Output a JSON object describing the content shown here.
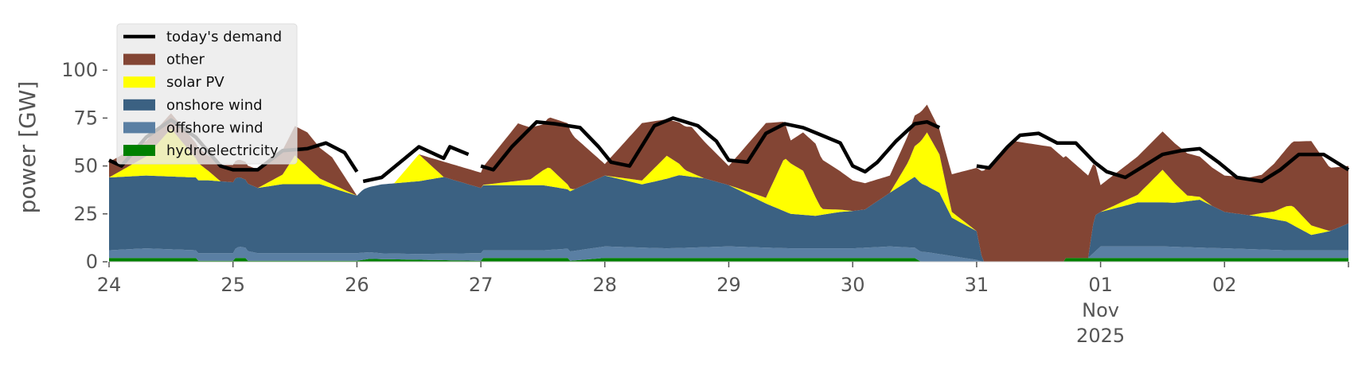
{
  "chart_data": {
    "type": "area",
    "ylabel": "power [GW]",
    "ylim": [
      0,
      120
    ],
    "y_ticks": [
      0,
      25,
      50,
      75,
      100
    ],
    "xlim": [
      0,
      10
    ],
    "x_ticks": [
      {
        "x": 0,
        "lines": [
          "24"
        ]
      },
      {
        "x": 1,
        "lines": [
          "25"
        ]
      },
      {
        "x": 2,
        "lines": [
          "26"
        ]
      },
      {
        "x": 3,
        "lines": [
          "27"
        ]
      },
      {
        "x": 4,
        "lines": [
          "28"
        ]
      },
      {
        "x": 5,
        "lines": [
          "29"
        ]
      },
      {
        "x": 6,
        "lines": [
          "30"
        ]
      },
      {
        "x": 7,
        "lines": [
          "31"
        ]
      },
      {
        "x": 8,
        "lines": [
          "01",
          "Nov",
          "2025"
        ]
      },
      {
        "x": 9,
        "lines": [
          "02"
        ]
      }
    ],
    "legend_position": "top-left",
    "legend": [
      {
        "label": "today's demand",
        "kind": "line",
        "color": "#000000"
      },
      {
        "label": "other",
        "kind": "patch",
        "color": "#834534"
      },
      {
        "label": "solar PV",
        "kind": "patch",
        "color": "#ffff00"
      },
      {
        "label": "onshore wind",
        "kind": "patch",
        "color": "#3b6182"
      },
      {
        "label": "offshore wind",
        "kind": "patch",
        "color": "#5a7fa3"
      },
      {
        "label": "hydroelectricity",
        "kind": "patch",
        "color": "#008000"
      }
    ],
    "series": [
      {
        "name": "hydroelectricity",
        "color": "#008000",
        "points": [
          [
            0,
            2
          ],
          [
            0.7,
            2
          ],
          [
            0.72,
            0.5
          ],
          [
            1,
            0.5
          ],
          [
            1.02,
            2
          ],
          [
            1.1,
            2
          ],
          [
            1.12,
            0.5
          ],
          [
            2,
            0.5
          ],
          [
            2.1,
            1.5
          ],
          [
            3,
            0.5
          ],
          [
            3,
            2
          ],
          [
            3.7,
            2
          ],
          [
            3.72,
            0.5
          ],
          [
            4,
            2
          ],
          [
            5,
            2
          ],
          [
            6,
            2
          ],
          [
            6.5,
            2
          ],
          [
            6.55,
            0
          ],
          [
            7,
            0
          ],
          [
            7.7,
            0
          ],
          [
            7.72,
            2
          ],
          [
            8,
            2
          ],
          [
            8.5,
            2
          ],
          [
            9,
            2
          ],
          [
            10,
            2
          ]
        ]
      },
      {
        "name": "offshore wind",
        "color": "#5a7fa3",
        "points": [
          [
            0,
            4
          ],
          [
            0.3,
            5
          ],
          [
            0.7,
            4
          ],
          [
            1,
            4
          ],
          [
            1.05,
            6
          ],
          [
            1.2,
            4
          ],
          [
            1.6,
            4
          ],
          [
            2,
            4
          ],
          [
            2.2,
            3
          ],
          [
            2.5,
            3
          ],
          [
            3,
            4
          ],
          [
            3.5,
            4
          ],
          [
            4,
            6
          ],
          [
            4.5,
            5
          ],
          [
            5,
            6
          ],
          [
            5.5,
            5
          ],
          [
            6,
            5
          ],
          [
            6.3,
            6
          ],
          [
            6.6,
            5
          ],
          [
            7,
            1
          ],
          [
            7.05,
            0
          ],
          [
            7.9,
            0
          ],
          [
            8,
            6
          ],
          [
            8.5,
            6
          ],
          [
            9,
            5
          ],
          [
            9.5,
            4
          ],
          [
            10,
            4
          ]
        ]
      },
      {
        "name": "onshore wind",
        "color": "#3b6182",
        "points": [
          [
            0,
            38
          ],
          [
            0.5,
            38
          ],
          [
            0.8,
            38
          ],
          [
            1,
            37
          ],
          [
            1.2,
            34
          ],
          [
            1.4,
            36
          ],
          [
            1.7,
            36
          ],
          [
            2,
            30
          ],
          [
            2.05,
            33
          ],
          [
            2.2,
            36
          ],
          [
            2.5,
            38
          ],
          [
            2.7,
            40
          ],
          [
            3,
            34
          ],
          [
            3.2,
            34
          ],
          [
            3.5,
            34
          ],
          [
            3.7,
            31
          ],
          [
            4,
            37
          ],
          [
            4.3,
            33
          ],
          [
            4.6,
            38
          ],
          [
            4.8,
            36
          ],
          [
            5,
            32
          ],
          [
            5.3,
            23
          ],
          [
            5.5,
            18
          ],
          [
            5.7,
            17
          ],
          [
            5.9,
            19
          ],
          [
            6.1,
            20
          ],
          [
            6.3,
            28
          ],
          [
            6.5,
            37
          ],
          [
            6.7,
            32
          ],
          [
            6.8,
            20
          ],
          [
            7,
            15
          ],
          [
            7.05,
            0
          ],
          [
            7.9,
            0
          ],
          [
            7.95,
            19
          ],
          [
            8,
            18
          ],
          [
            8.3,
            23
          ],
          [
            8.6,
            23
          ],
          [
            8.8,
            25
          ],
          [
            9,
            19
          ],
          [
            9.3,
            17
          ],
          [
            9.5,
            15
          ],
          [
            9.7,
            8
          ],
          [
            9.85,
            10
          ],
          [
            10,
            14
          ]
        ]
      },
      {
        "name": "solar PV",
        "color": "#ffff00",
        "points": [
          [
            0,
            0
          ],
          [
            0.3,
            10
          ],
          [
            0.5,
            25
          ],
          [
            0.7,
            10
          ],
          [
            0.9,
            0
          ],
          [
            1.2,
            0
          ],
          [
            1.4,
            5
          ],
          [
            1.5,
            15
          ],
          [
            1.7,
            3
          ],
          [
            2,
            0
          ],
          [
            2.3,
            0
          ],
          [
            2.5,
            14
          ],
          [
            2.7,
            0
          ],
          [
            3,
            0
          ],
          [
            3.4,
            3
          ],
          [
            3.55,
            10
          ],
          [
            3.75,
            0
          ],
          [
            4,
            0
          ],
          [
            4.3,
            2
          ],
          [
            4.5,
            12
          ],
          [
            4.65,
            3
          ],
          [
            4.8,
            0
          ],
          [
            5,
            0
          ],
          [
            5.3,
            3
          ],
          [
            5.45,
            28
          ],
          [
            5.6,
            23
          ],
          [
            5.75,
            3
          ],
          [
            6,
            0
          ],
          [
            6.3,
            0
          ],
          [
            6.45,
            10
          ],
          [
            6.6,
            28
          ],
          [
            6.7,
            20
          ],
          [
            6.8,
            3
          ],
          [
            7,
            0
          ],
          [
            8,
            0
          ],
          [
            8.3,
            4
          ],
          [
            8.5,
            17
          ],
          [
            8.7,
            3
          ],
          [
            8.9,
            0
          ],
          [
            9,
            0
          ],
          [
            9.2,
            0
          ],
          [
            9.4,
            4
          ],
          [
            9.55,
            10
          ],
          [
            9.7,
            5
          ],
          [
            9.85,
            0
          ],
          [
            10,
            0
          ]
        ]
      },
      {
        "name": "other",
        "color": "#834534",
        "points": [
          [
            0,
            8
          ],
          [
            0.5,
            8
          ],
          [
            0.8,
            8
          ],
          [
            1,
            9
          ],
          [
            1.3,
            10
          ],
          [
            1.6,
            18
          ],
          [
            1.8,
            14
          ],
          [
            2,
            0
          ],
          [
            2.2,
            0
          ],
          [
            2.5,
            0
          ],
          [
            2.7,
            8
          ],
          [
            3,
            8
          ],
          [
            3.3,
            30
          ],
          [
            3.5,
            24
          ],
          [
            3.7,
            32
          ],
          [
            4,
            6
          ],
          [
            4.3,
            30
          ],
          [
            4.5,
            19
          ],
          [
            4.7,
            24
          ],
          [
            5,
            10
          ],
          [
            5.3,
            39
          ],
          [
            5.5,
            12
          ],
          [
            5.7,
            28
          ],
          [
            6,
            16
          ],
          [
            6.3,
            9
          ],
          [
            6.5,
            16
          ],
          [
            6.7,
            13
          ],
          [
            7,
            33
          ],
          [
            7.05,
            47
          ],
          [
            7.3,
            63
          ],
          [
            7.6,
            60
          ],
          [
            7.9,
            43
          ],
          [
            8,
            14
          ],
          [
            8.3,
            20
          ],
          [
            8.5,
            20
          ],
          [
            8.7,
            22
          ],
          [
            9,
            19
          ],
          [
            9.3,
            20
          ],
          [
            9.5,
            30
          ],
          [
            9.7,
            44
          ],
          [
            9.85,
            33
          ],
          [
            10,
            30
          ]
        ]
      }
    ],
    "demand": [
      [
        [
          0,
          53
        ],
        [
          0.1,
          50
        ],
        [
          0.3,
          65
        ],
        [
          0.5,
          74
        ],
        [
          0.7,
          65
        ],
        [
          0.9,
          50
        ],
        [
          1,
          48
        ],
        [
          1.2,
          48
        ],
        [
          1.4,
          58
        ],
        [
          1.6,
          59
        ],
        [
          1.75,
          62
        ],
        [
          1.9,
          57
        ],
        [
          2,
          47
        ]
      ],
      [
        [
          2.05,
          42
        ],
        [
          2.2,
          44
        ],
        [
          2.35,
          52
        ],
        [
          2.5,
          60
        ],
        [
          2.7,
          54
        ],
        [
          2.75,
          60
        ],
        [
          2.9,
          56
        ]
      ],
      [
        [
          3,
          50
        ],
        [
          3.1,
          48
        ],
        [
          3.25,
          60
        ],
        [
          3.45,
          73
        ],
        [
          3.6,
          72
        ],
        [
          3.8,
          70
        ],
        [
          3.95,
          60
        ],
        [
          4.05,
          52
        ],
        [
          4.2,
          50
        ],
        [
          4.4,
          71
        ],
        [
          4.55,
          75
        ],
        [
          4.75,
          71
        ],
        [
          4.9,
          63
        ],
        [
          5,
          53
        ],
        [
          5.15,
          52
        ],
        [
          5.3,
          67
        ],
        [
          5.45,
          72
        ],
        [
          5.6,
          70
        ],
        [
          5.75,
          66
        ],
        [
          5.9,
          62
        ],
        [
          6,
          50
        ],
        [
          6.1,
          47
        ],
        [
          6.2,
          52
        ],
        [
          6.35,
          63
        ],
        [
          6.5,
          72
        ],
        [
          6.6,
          73
        ],
        [
          6.7,
          70
        ]
      ],
      [
        [
          7,
          50
        ],
        [
          7.1,
          49
        ],
        [
          7.25,
          60
        ],
        [
          7.35,
          66
        ],
        [
          7.5,
          67
        ],
        [
          7.65,
          62
        ],
        [
          7.8,
          62
        ],
        [
          7.95,
          52
        ],
        [
          8.05,
          47
        ],
        [
          8.2,
          44
        ],
        [
          8.35,
          50
        ],
        [
          8.5,
          56
        ],
        [
          8.65,
          58
        ],
        [
          8.8,
          59
        ],
        [
          8.95,
          52
        ],
        [
          9.1,
          44
        ],
        [
          9.3,
          42
        ],
        [
          9.45,
          48
        ],
        [
          9.6,
          56
        ],
        [
          9.8,
          56
        ],
        [
          10,
          48
        ]
      ]
    ]
  }
}
